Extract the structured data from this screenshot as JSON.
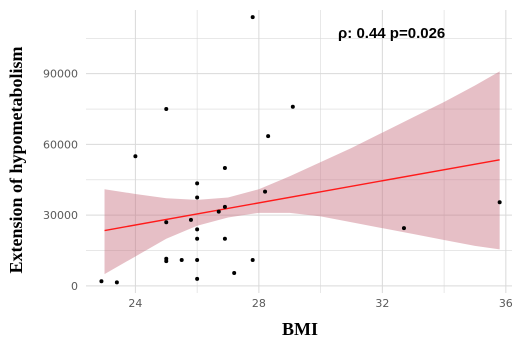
{
  "chart_data": {
    "type": "scatter",
    "xlabel": "BMI",
    "ylabel": "Extension of hypometabolism",
    "annotation": "ρ: 0.44 p=0.026",
    "xlim": [
      22.4,
      36.2
    ],
    "ylim": [
      -3000,
      117000
    ],
    "xticks": [
      24,
      28,
      32,
      36
    ],
    "yticks": [
      0,
      30000,
      60000,
      90000
    ],
    "grid": true,
    "points": [
      {
        "x": 22.9,
        "y": 2000
      },
      {
        "x": 23.4,
        "y": 1500
      },
      {
        "x": 24.0,
        "y": 55000
      },
      {
        "x": 25.0,
        "y": 75000
      },
      {
        "x": 25.0,
        "y": 27000
      },
      {
        "x": 25.0,
        "y": 11500
      },
      {
        "x": 25.0,
        "y": 10500
      },
      {
        "x": 25.5,
        "y": 11000
      },
      {
        "x": 25.8,
        "y": 28000
      },
      {
        "x": 26.0,
        "y": 43500
      },
      {
        "x": 26.0,
        "y": 37500
      },
      {
        "x": 26.0,
        "y": 24000
      },
      {
        "x": 26.0,
        "y": 20000
      },
      {
        "x": 26.0,
        "y": 11000
      },
      {
        "x": 26.0,
        "y": 3000
      },
      {
        "x": 26.7,
        "y": 31500
      },
      {
        "x": 26.9,
        "y": 50000
      },
      {
        "x": 26.9,
        "y": 33500
      },
      {
        "x": 26.9,
        "y": 20000
      },
      {
        "x": 27.2,
        "y": 5500
      },
      {
        "x": 27.8,
        "y": 114000
      },
      {
        "x": 27.8,
        "y": 11000
      },
      {
        "x": 28.2,
        "y": 40000
      },
      {
        "x": 28.3,
        "y": 63500
      },
      {
        "x": 29.1,
        "y": 76000
      },
      {
        "x": 32.7,
        "y": 24500
      },
      {
        "x": 35.8,
        "y": 35500
      }
    ],
    "fit": {
      "x": [
        23.0,
        35.8
      ],
      "y": [
        23500,
        53500
      ]
    },
    "band": {
      "x": [
        23.0,
        24.0,
        25.0,
        26.0,
        27.0,
        28.0,
        29.0,
        30.0,
        31.0,
        32.0,
        33.0,
        34.0,
        35.0,
        35.8
      ],
      "upper": [
        41000,
        39000,
        37200,
        36500,
        37500,
        41000,
        46500,
        52500,
        58500,
        65000,
        71500,
        78000,
        85000,
        91000
      ],
      "lower": [
        5000,
        12500,
        20000,
        25500,
        29000,
        31000,
        31000,
        29500,
        27000,
        24500,
        22000,
        19500,
        17000,
        15500
      ]
    },
    "colors": {
      "fit": "#ff1a1a",
      "band": "#c87080",
      "points": "#000000",
      "grid": "#d9d9d9"
    }
  }
}
